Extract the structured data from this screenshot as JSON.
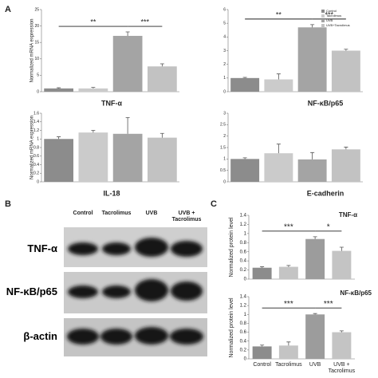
{
  "panel_labels": [
    "A",
    "B",
    "C"
  ],
  "chart_data": [
    {
      "type": "bar",
      "title": "TNF-α",
      "y_label": "Normalized mRNA expression",
      "values": [
        1,
        1,
        17,
        7.7
      ],
      "errors": [
        0.2,
        0.3,
        1.2,
        0.8
      ],
      "colors": [
        "#8c8c8c",
        "#cbcbcb",
        "#a4a4a4",
        "#c2c2c2"
      ],
      "ylim": [
        0,
        25
      ],
      "yticks": [
        0,
        5,
        10,
        15,
        20,
        25
      ],
      "comparisons": [
        {
          "groups": [
            0,
            2
          ],
          "label": "**"
        },
        {
          "groups": [
            2,
            3
          ],
          "label": "***"
        }
      ]
    },
    {
      "type": "bar",
      "title": "NF-κB/p65",
      "values": [
        1,
        0.9,
        4.7,
        3.0
      ],
      "errors": [
        0.05,
        0.4,
        0.2,
        0.1
      ],
      "colors": [
        "#8c8c8c",
        "#cbcbcb",
        "#a4a4a4",
        "#c2c2c2"
      ],
      "legend": [
        "Control",
        "Tacrolimus",
        "UVB",
        "UVB+Tacrolimus"
      ],
      "ylim": [
        0,
        6
      ],
      "yticks": [
        0,
        1,
        2,
        3,
        4,
        5,
        6
      ],
      "comparisons": [
        {
          "groups": [
            0,
            2
          ],
          "label": "**"
        },
        {
          "groups": [
            2,
            3
          ],
          "label": "***"
        }
      ]
    },
    {
      "type": "bar",
      "title": "IL-18",
      "y_label": "Normalized mRNA expression",
      "values": [
        1.0,
        1.15,
        1.12,
        1.03
      ],
      "errors": [
        0.05,
        0.05,
        0.38,
        0.1
      ],
      "colors": [
        "#8c8c8c",
        "#cbcbcb",
        "#a4a4a4",
        "#c2c2c2"
      ],
      "ylim": [
        0,
        1.6
      ],
      "yticks": [
        0,
        0.2,
        0.4,
        0.6,
        0.8,
        1,
        1.2,
        1.4,
        1.6
      ]
    },
    {
      "type": "bar",
      "title": "E-cadherin",
      "values": [
        1.0,
        1.25,
        0.98,
        1.42
      ],
      "errors": [
        0.05,
        0.4,
        0.3,
        0.1
      ],
      "colors": [
        "#8c8c8c",
        "#cbcbcb",
        "#a4a4a4",
        "#c2c2c2"
      ],
      "ylim": [
        0,
        3
      ],
      "yticks": [
        0,
        0.5,
        1,
        1.5,
        2,
        2.5,
        3
      ]
    },
    {
      "type": "bar",
      "title": "TNF-α",
      "y_label": "Normalized protein level",
      "values": [
        0.25,
        0.27,
        0.88,
        0.62
      ],
      "errors": [
        0.02,
        0.03,
        0.05,
        0.08
      ],
      "colors": [
        "#8c8c8c",
        "#c4c4c4",
        "#9c9c9c",
        "#c4c4c4"
      ],
      "ylim": [
        0,
        1.4
      ],
      "yticks": [
        0,
        0.2,
        0.4,
        0.6,
        0.8,
        1,
        1.2,
        1.4
      ],
      "comparisons": [
        {
          "groups": [
            0,
            2
          ],
          "label": "***"
        },
        {
          "groups": [
            2,
            3
          ],
          "label": "*"
        }
      ]
    },
    {
      "type": "bar",
      "title": "NF-κB/p65",
      "y_label": "Normalized protein level",
      "categories": [
        "Control",
        "Tacrolimus",
        "UVB",
        "UVB + Tacrolimus"
      ],
      "values": [
        0.28,
        0.3,
        1.0,
        0.6
      ],
      "errors": [
        0.03,
        0.08,
        0.02,
        0.03
      ],
      "colors": [
        "#8c8c8c",
        "#c4c4c4",
        "#9c9c9c",
        "#c4c4c4"
      ],
      "ylim": [
        0,
        1.4
      ],
      "yticks": [
        0,
        0.2,
        0.4,
        0.6,
        0.8,
        1,
        1.2,
        1.4
      ],
      "comparisons": [
        {
          "groups": [
            0,
            2
          ],
          "label": "***"
        },
        {
          "groups": [
            2,
            3
          ],
          "label": "***"
        }
      ]
    }
  ],
  "blot": {
    "columns": [
      "Control",
      "Tacrolimus",
      "UVB",
      "UVB + Tacrolimus"
    ],
    "rows": [
      "TNF-α",
      "NF-κB/p65",
      "β-actin"
    ]
  }
}
